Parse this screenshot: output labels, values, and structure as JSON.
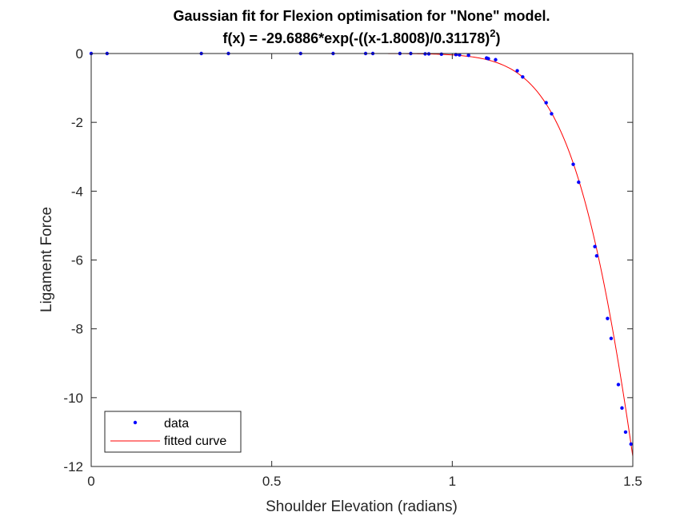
{
  "chart_data": {
    "type": "scatter",
    "title": "Gaussian fit for Flexion optimisation for \"None\" model.",
    "subtitle_main": "f(x) = -29.6886*exp(-((x-1.8008)/0.31178)",
    "subtitle_sup": "2",
    "subtitle_end": ")",
    "xlabel": "Shoulder Elevation (radians)",
    "ylabel": "Ligament Force",
    "xlim": [
      0,
      1.5
    ],
    "ylim": [
      -12,
      0
    ],
    "xticks": [
      0,
      0.5,
      1,
      1.5
    ],
    "xtick_labels": [
      "0",
      "0.5",
      "1",
      "1.5"
    ],
    "yticks": [
      0,
      -2,
      -4,
      -6,
      -8,
      -10,
      -12
    ],
    "ytick_labels": [
      "0",
      "-2",
      "-4",
      "-6",
      "-8",
      "-10",
      "-12"
    ],
    "grid": false,
    "legend_position": "bottom-left",
    "series": [
      {
        "name": "data",
        "mode": "markers",
        "color": "#0000ff",
        "x": [
          0.0,
          0.044,
          0.305,
          0.38,
          0.58,
          0.67,
          0.76,
          0.78,
          0.855,
          0.885,
          0.925,
          0.935,
          0.97,
          1.01,
          1.02,
          1.045,
          1.095,
          1.1,
          1.12,
          1.18,
          1.195,
          1.26,
          1.275,
          1.335,
          1.35,
          1.395,
          1.4,
          1.43,
          1.44,
          1.46,
          1.47,
          1.48,
          1.495
        ],
        "y": [
          0.0,
          0.0,
          0.0,
          0.0,
          0.0,
          0.0,
          0.0,
          0.0,
          0.0,
          0.0,
          -0.01,
          -0.01,
          -0.02,
          -0.03,
          -0.04,
          -0.05,
          -0.13,
          -0.15,
          -0.18,
          -0.5,
          -0.68,
          -1.43,
          -1.75,
          -3.22,
          -3.74,
          -5.61,
          -5.88,
          -7.7,
          -8.28,
          -9.62,
          -10.3,
          -11.0,
          -11.35
        ]
      },
      {
        "name": "fitted curve",
        "mode": "line",
        "color": "#ff0000",
        "function": {
          "a": -29.6886,
          "b": 1.8008,
          "c": 0.31178
        }
      }
    ]
  }
}
